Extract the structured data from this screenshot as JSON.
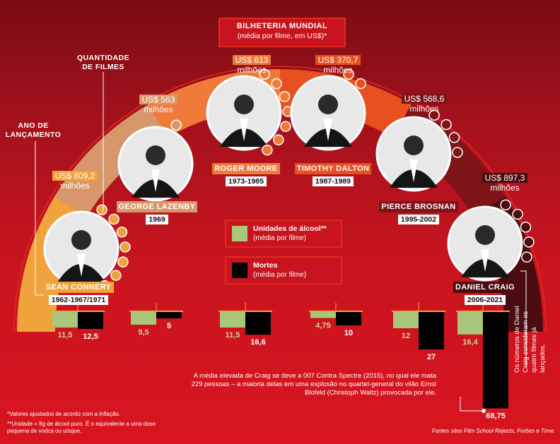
{
  "title": {
    "line1": "BILHETERIA MUNDIAL",
    "line2": "(média por filme, em US$)*"
  },
  "labels": {
    "quantity": [
      "QUANTIDADE",
      "DE FILMES"
    ],
    "launch": [
      "ANO DE",
      "LANÇAMENTO"
    ]
  },
  "legend": {
    "alcohol": {
      "title": "Unidades de álcool**",
      "sub": "(média por filme)",
      "color": "#a8c77a"
    },
    "deaths": {
      "title": "Mortes",
      "sub": "(média por filme)",
      "color": "#000000"
    }
  },
  "actors": [
    {
      "name": "SEAN CONNERY",
      "years": "1962-1967/1971",
      "box_office": [
        "US$ 809,2",
        "milhões"
      ],
      "films": 7,
      "band_color": "#f0a23c",
      "name_bg": "#f0a23c"
    },
    {
      "name": "GEORGE LAZENBY",
      "years": "1969",
      "box_office": [
        "US$ 563",
        "milhões"
      ],
      "films": 1,
      "band_color": "#d8976a",
      "name_bg": "#d8976a"
    },
    {
      "name": "ROGER MOORE",
      "years": "1973-1985",
      "box_office": [
        "US$ 613",
        "milhões"
      ],
      "films": 7,
      "band_color": "#ef7a3a",
      "name_bg": "#ef7a3a"
    },
    {
      "name": "TIMOTHY DALTON",
      "years": "1987-1989",
      "box_office": [
        "US$ 370,7",
        "milhões"
      ],
      "films": 2,
      "band_color": "#e8501f",
      "name_bg": "#e8501f"
    },
    {
      "name": "PIERCE BROSNAN",
      "years": "1995-2002",
      "box_office": [
        "US$ 568,6",
        "milhões"
      ],
      "films": 4,
      "band_color": "#7e1418",
      "name_bg": "#7e1418"
    },
    {
      "name": "DANIEL CRAIG",
      "years": "2006-2021",
      "box_office": [
        "US$ 897,3",
        "milhões"
      ],
      "films": 5,
      "band_color": "#4a0c10",
      "name_bg": "#4a0c10"
    }
  ],
  "chart_data": {
    "type": "bar",
    "categories": [
      "SEAN CONNERY",
      "GEORGE LAZENBY",
      "ROGER MOORE",
      "TIMOTHY DALTON",
      "PIERCE BROSNAN",
      "DANIEL CRAIG"
    ],
    "series": [
      {
        "name": "Unidades de álcool**",
        "values": [
          11.5,
          9.5,
          11.5,
          4.75,
          12,
          16.4
        ],
        "labels": [
          "11,5",
          "9,5",
          "11,5",
          "4,75",
          "12",
          "16,4"
        ]
      },
      {
        "name": "Mortes",
        "values": [
          12.5,
          5,
          16.6,
          10,
          27,
          68.75
        ],
        "labels": [
          "12,5",
          "5",
          "16,6",
          "10",
          "27",
          "68,75"
        ]
      }
    ],
    "box_office_musd": [
      809.2,
      563,
      613,
      370.7,
      568.6,
      897.3
    ],
    "title": "BILHETERIA MUNDIAL"
  },
  "notes": {
    "craig": "A média elevada de Craig se deve a 007 Contra Spectre (2015), no qual ele mata 229 pessoas – a maioria delas em uma explosão no quartel-general do vilão Ernst Blofeld (Christoph Waltz) provocada por ele.",
    "craig_side": "Os números de Daniel Craig consideram os quatro filmes já lançados.",
    "foot1": "*Valores ajustados de acordo com a inflação.",
    "foot2": "**Unidade = 8g de álcool puro. É o equivalente a uma dose pequena de vodca ou uísque.",
    "sources": "Fontes sites Film School Rejects, Forbes e Time."
  }
}
